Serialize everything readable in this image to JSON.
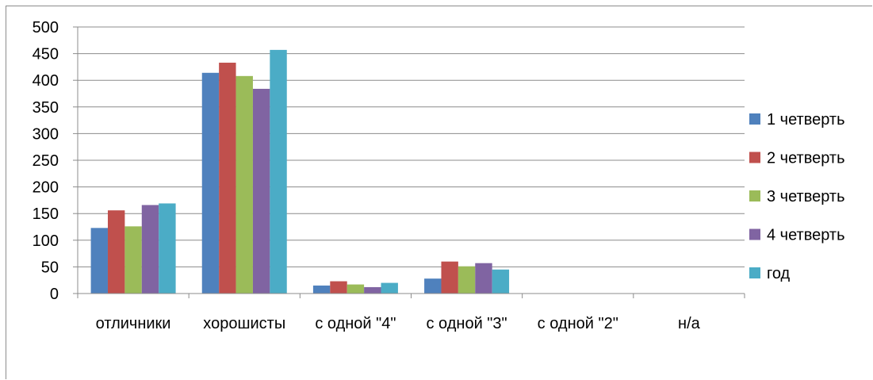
{
  "chart_data": {
    "type": "bar",
    "title": "",
    "xlabel": "",
    "ylabel": "",
    "categories": [
      "отличники",
      "хорошисты",
      "с одной \"4\"",
      "с одной \"3\"",
      "с  одной \"2\"",
      "н/а"
    ],
    "series": [
      {
        "name": "1 четверть",
        "color": "#4F81BD",
        "values": [
          123,
          414,
          15,
          28,
          0,
          0
        ]
      },
      {
        "name": "2 четверть",
        "color": "#C0504D",
        "values": [
          156,
          433,
          23,
          60,
          0,
          0
        ]
      },
      {
        "name": "3 четверть",
        "color": "#9BBB59",
        "values": [
          126,
          408,
          17,
          51,
          0,
          0
        ]
      },
      {
        "name": "4 четверть",
        "color": "#8064A2",
        "values": [
          166,
          384,
          12,
          57,
          0,
          0
        ]
      },
      {
        "name": "год",
        "color": "#4BACC6",
        "values": [
          169,
          457,
          20,
          45,
          0,
          0
        ]
      }
    ],
    "ylim": [
      0,
      500
    ],
    "yticks": [
      0,
      50,
      100,
      150,
      200,
      250,
      300,
      350,
      400,
      450,
      500
    ],
    "grid": true,
    "legend_position": "right"
  }
}
